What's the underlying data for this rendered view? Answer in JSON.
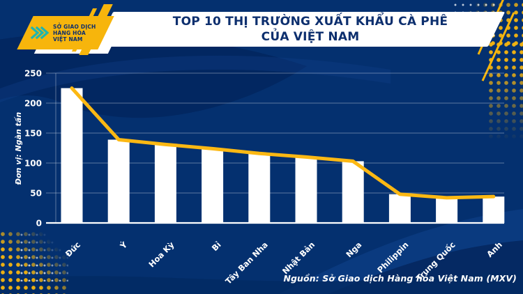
{
  "header": {
    "title_line1": "TOP 10 THỊ TRƯỜNG XUẤT KHẨU CÀ PHÊ",
    "title_line2": "CỦA VIỆT NAM",
    "logo": {
      "line1": "SỞ GIAO DỊCH",
      "line2": "HÀNG HÓA",
      "line3": "VIỆT NAM"
    }
  },
  "footer": {
    "source": "Nguồn: Sở Giao dịch Hàng hóa Việt Nam (MXV)"
  },
  "theme": {
    "background_navy": "#04306f",
    "banner_white": "#ffffff",
    "title_navy": "#0d2f6e",
    "accent_yellow": "#f7b50c",
    "line_yellow": "#fcb813",
    "bar_white": "#ffffff",
    "logo_teal": "#1fb5b0",
    "grid_line": "rgba(255,255,255,0.35)"
  },
  "chart_data": {
    "type": "bar",
    "title": "TOP 10 THỊ TRƯỜNG XUẤT KHẨU CÀ PHÊ CỦA VIỆT NAM",
    "categories": [
      "Đức",
      "Ý",
      "Hoa Kỳ",
      "Bỉ",
      "Tây Ban Nha",
      "Nhật Bản",
      "Nga",
      "Philippin",
      "Trung Quốc",
      "Anh"
    ],
    "values": [
      225,
      139,
      131,
      124,
      116,
      110,
      103,
      48,
      42,
      44
    ],
    "series": [
      {
        "name": "bars",
        "type": "bar",
        "values": [
          225,
          139,
          131,
          124,
          116,
          110,
          103,
          48,
          42,
          44
        ]
      },
      {
        "name": "trend-line",
        "type": "line",
        "values": [
          225,
          139,
          131,
          124,
          116,
          110,
          103,
          48,
          42,
          44
        ]
      }
    ],
    "xlabel": "",
    "ylabel": "Đơn vị: Ngàn tấn",
    "ylim": [
      0,
      250
    ],
    "yticks": [
      0,
      50,
      100,
      150,
      200,
      250
    ],
    "grid": true,
    "legend_position": "none"
  }
}
